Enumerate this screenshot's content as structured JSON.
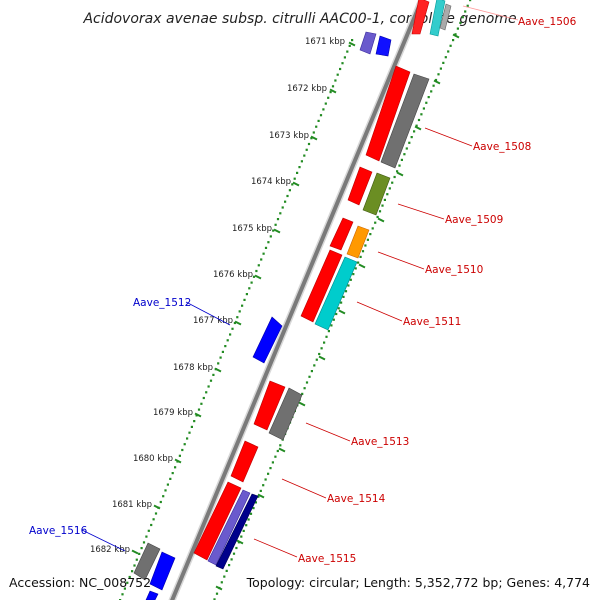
{
  "title": "Acidovorax avenae subsp. citrulli AAC00-1, complete genome",
  "footer": {
    "accession": "Accession: NC_008752",
    "summary": "Topology: circular; Length: 5,352,772 bp; Genes: 4,774"
  },
  "colors": {
    "red": "#ff0000",
    "gray": "#6e6e6e",
    "olive": "#6b8e23",
    "orange": "#ff9900",
    "cyan": "#00cccc",
    "blue": "#0000ff",
    "navy": "#00008b",
    "slate": "#6a5acd",
    "green_dots": "#228b22",
    "red_label": "#cc0000",
    "blue_label": "#0000cc"
  },
  "ruler": [
    {
      "label": "1671 kbp"
    },
    {
      "label": "1672 kbp"
    },
    {
      "label": "1673 kbp"
    },
    {
      "label": "1674 kbp"
    },
    {
      "label": "1675 kbp"
    },
    {
      "label": "1676 kbp"
    },
    {
      "label": "1677 kbp"
    },
    {
      "label": "1678 kbp"
    },
    {
      "label": "1679 kbp"
    },
    {
      "label": "1680 kbp"
    },
    {
      "label": "1681 kbp"
    },
    {
      "label": "1682 kbp"
    }
  ],
  "gene_labels": [
    {
      "name": "Aave_1506",
      "color": "red"
    },
    {
      "name": "Aave_1508",
      "color": "red"
    },
    {
      "name": "Aave_1509",
      "color": "red"
    },
    {
      "name": "Aave_1510",
      "color": "red"
    },
    {
      "name": "Aave_1511",
      "color": "red"
    },
    {
      "name": "Aave_1512",
      "color": "blue"
    },
    {
      "name": "Aave_1513",
      "color": "red"
    },
    {
      "name": "Aave_1514",
      "color": "red"
    },
    {
      "name": "Aave_1515",
      "color": "red"
    },
    {
      "name": "Aave_1516",
      "color": "blue"
    }
  ]
}
